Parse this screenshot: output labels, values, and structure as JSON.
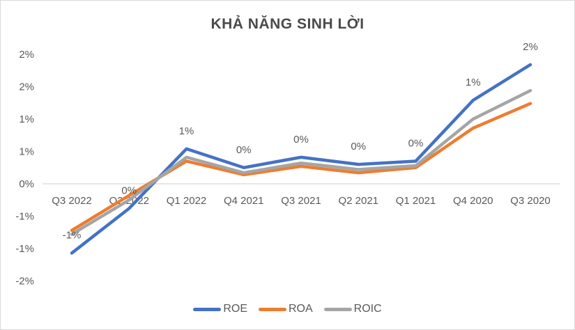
{
  "chart_data": {
    "type": "line",
    "title": "KHẢ NĂNG SINH LỜI",
    "categories": [
      "Q3 2022",
      "Q2 2022",
      "Q1 2022",
      "Q4 2021",
      "Q3 2021",
      "Q2 2021",
      "Q1 2021",
      "Q4 2020",
      "Q3 2020"
    ],
    "series": [
      {
        "name": "ROE",
        "color": "#4472C4",
        "values": [
          -1.07,
          -0.38,
          0.54,
          0.25,
          0.41,
          0.3,
          0.35,
          1.29,
          1.84
        ],
        "data_labels": [
          "-1%",
          "0%",
          "1%",
          "0%",
          "0%",
          "0%",
          "0%",
          "1%",
          "2%"
        ]
      },
      {
        "name": "ROA",
        "color": "#ED7D31",
        "values": [
          -0.72,
          -0.18,
          0.35,
          0.14,
          0.27,
          0.17,
          0.25,
          0.86,
          1.24
        ],
        "data_labels": []
      },
      {
        "name": "ROIC",
        "color": "#A5A5A5",
        "values": [
          -0.78,
          -0.25,
          0.41,
          0.17,
          0.32,
          0.22,
          0.28,
          1.0,
          1.44
        ],
        "data_labels": []
      }
    ],
    "y_axis": {
      "unit": "%",
      "range": [
        -1.5,
        2.0
      ],
      "tick_step": 0.5,
      "ticks": [
        {
          "value": 2.0,
          "label": "2%"
        },
        {
          "value": 1.5,
          "label": "2%"
        },
        {
          "value": 1.0,
          "label": "1%"
        },
        {
          "value": 0.5,
          "label": "1%"
        },
        {
          "value": 0.0,
          "label": "0%"
        },
        {
          "value": -0.5,
          "label": "-1%"
        },
        {
          "value": -1.0,
          "label": "-1%"
        },
        {
          "value": -1.5,
          "label": "-2%"
        }
      ]
    },
    "grid": "zero-line-only",
    "legend_position": "bottom",
    "colors": {
      "text": "#595959",
      "title": "#4a4a4a",
      "gridline": "#d6d6d6"
    }
  }
}
